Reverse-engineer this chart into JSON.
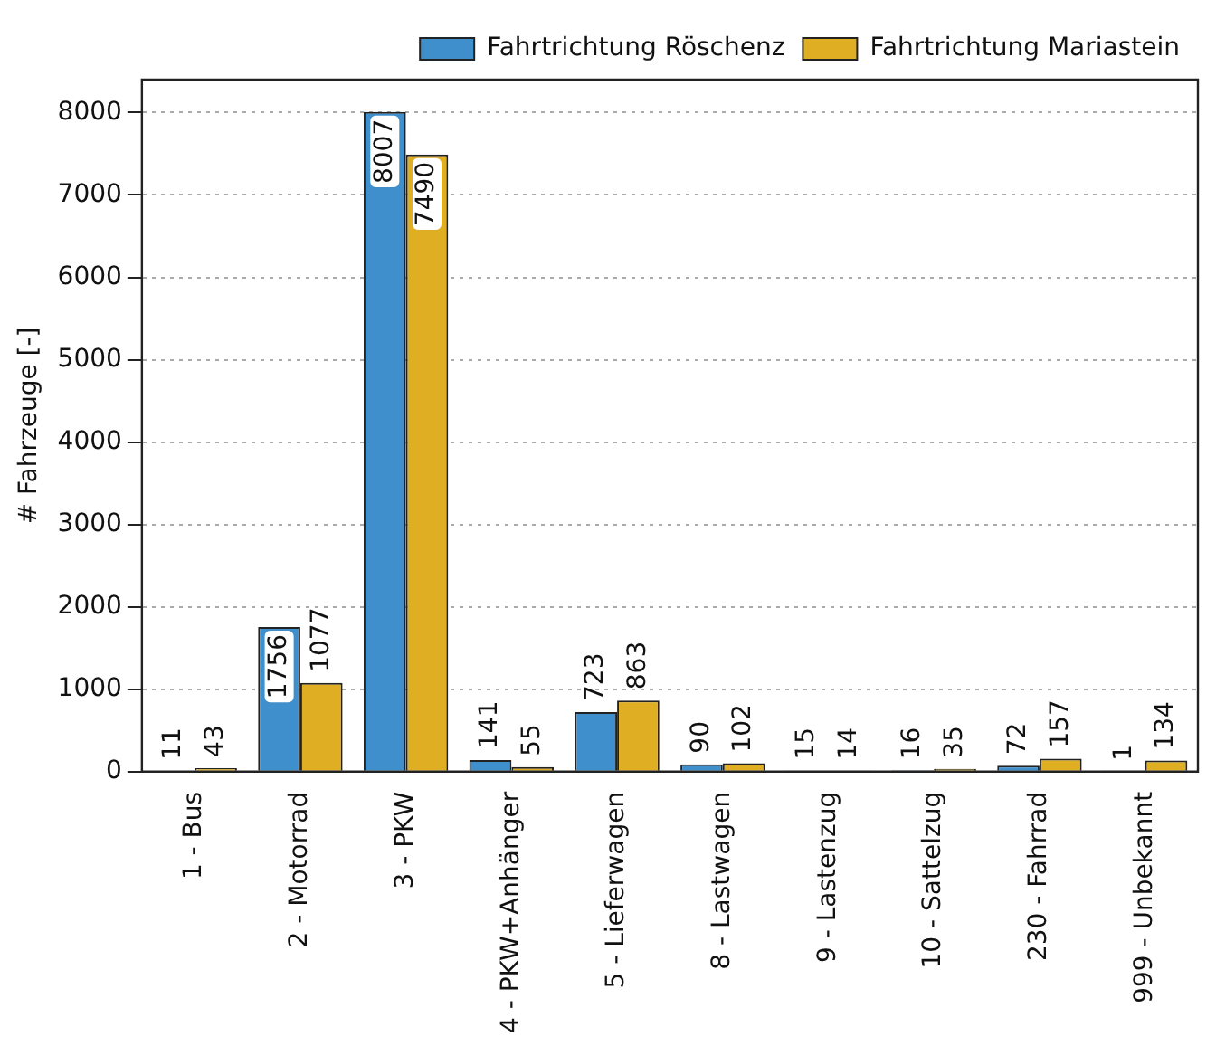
{
  "chart_data": {
    "type": "bar",
    "ylabel": "# Fahrzeuge [-]",
    "categories": [
      "1 - Bus",
      "2 - Motorrad",
      "3 - PKW",
      "4 - PKW+Anhänger",
      "5 - Lieferwagen",
      "8 - Lastwagen",
      "9 - Lastenzug",
      "10 - Sattelzug",
      "230 - Fahrrad",
      "999 - Unbekannt"
    ],
    "series": [
      {
        "name": "Fahrtrichtung Röschenz",
        "color": "#3f8fcd",
        "values": [
          11,
          1756,
          8007,
          141,
          723,
          90,
          15,
          16,
          72,
          1
        ]
      },
      {
        "name": "Fahrtrichtung Mariastein",
        "color": "#dfae22",
        "values": [
          43,
          1077,
          7490,
          55,
          863,
          102,
          14,
          35,
          157,
          134
        ]
      }
    ],
    "ylim": [
      0,
      8400
    ],
    "yticks": [
      0,
      1000,
      2000,
      3000,
      4000,
      5000,
      6000,
      7000,
      8000
    ],
    "grid": "y",
    "legend": "top right",
    "data_labels": true
  }
}
